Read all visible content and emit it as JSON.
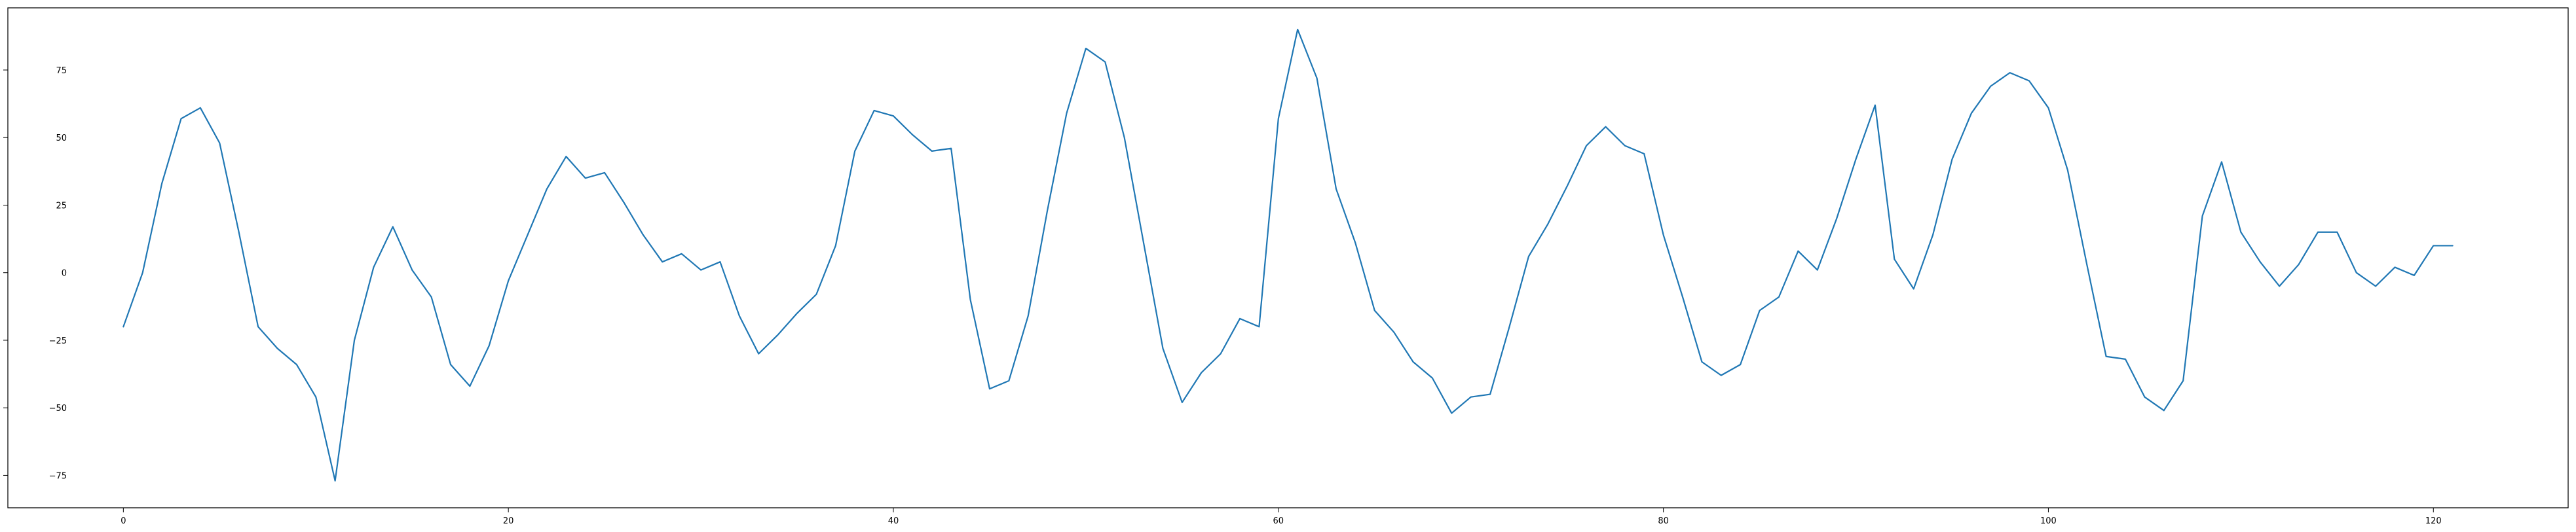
{
  "chart_data": {
    "type": "line",
    "title": "",
    "xlabel": "",
    "ylabel": "",
    "xlim": [
      -6,
      127
    ],
    "ylim": [
      -87,
      98
    ],
    "xticks": [
      0,
      20,
      40,
      60,
      80,
      100,
      120
    ],
    "yticks": [
      -75,
      -50,
      -25,
      0,
      25,
      50,
      75
    ],
    "grid": false,
    "legend": "none",
    "colors": {
      "line": "#1f77b4"
    },
    "series": [
      {
        "x": [
          0,
          1,
          2,
          3,
          4,
          5,
          6,
          7,
          8,
          9,
          10,
          11,
          12,
          13,
          14,
          15,
          16,
          17,
          18,
          19,
          20,
          21,
          22,
          23,
          24,
          25,
          26,
          27,
          28,
          29,
          30,
          31,
          32,
          33,
          34,
          35,
          36,
          37,
          38,
          39,
          40,
          41,
          42,
          43,
          44,
          45,
          46,
          47,
          48,
          49,
          50,
          51,
          52,
          53,
          54,
          55,
          56,
          57,
          58,
          59,
          60,
          61,
          62,
          63,
          64,
          65,
          66,
          67,
          68,
          69,
          70,
          71,
          72,
          73,
          74,
          75,
          76,
          77,
          78,
          79,
          80,
          81,
          82,
          83,
          84,
          85,
          86,
          87,
          88,
          89,
          90,
          91,
          92,
          93,
          94,
          95,
          96,
          97,
          98,
          99,
          100,
          101,
          102,
          103,
          104,
          105,
          106,
          107,
          108,
          109,
          110,
          111,
          112,
          113,
          114,
          115,
          116,
          117,
          118,
          119,
          120,
          121
        ],
        "values": [
          -20,
          0,
          33,
          57,
          61,
          48,
          15,
          -20,
          -28,
          -34,
          -46,
          -77,
          -25,
          2,
          17,
          1,
          -9,
          -34,
          -42,
          -27,
          -3,
          14,
          31,
          43,
          35,
          37,
          26,
          14,
          4,
          7,
          1,
          4,
          -16,
          -30,
          -23,
          -15,
          -8,
          10,
          45,
          60,
          58,
          51,
          45,
          46,
          -10,
          -43,
          -40,
          -16,
          23,
          59,
          83,
          78,
          50,
          11,
          -28,
          -48,
          -37,
          -30,
          -17,
          -20,
          57,
          90,
          72,
          31,
          11,
          -14,
          -22,
          -33,
          -39,
          -52,
          -46,
          -45,
          -20,
          6,
          18,
          32,
          47,
          54,
          47,
          44,
          14,
          -9,
          -33,
          -38,
          -34,
          -14,
          -9,
          8,
          1,
          20,
          42,
          62,
          5,
          -6,
          14,
          42,
          59,
          69,
          74,
          71,
          61,
          38,
          3,
          -31,
          -32,
          -46,
          -51,
          -40,
          21,
          41,
          15,
          4,
          -5,
          3,
          15,
          15,
          0,
          -5,
          2,
          -1,
          10,
          10
        ]
      }
    ]
  }
}
